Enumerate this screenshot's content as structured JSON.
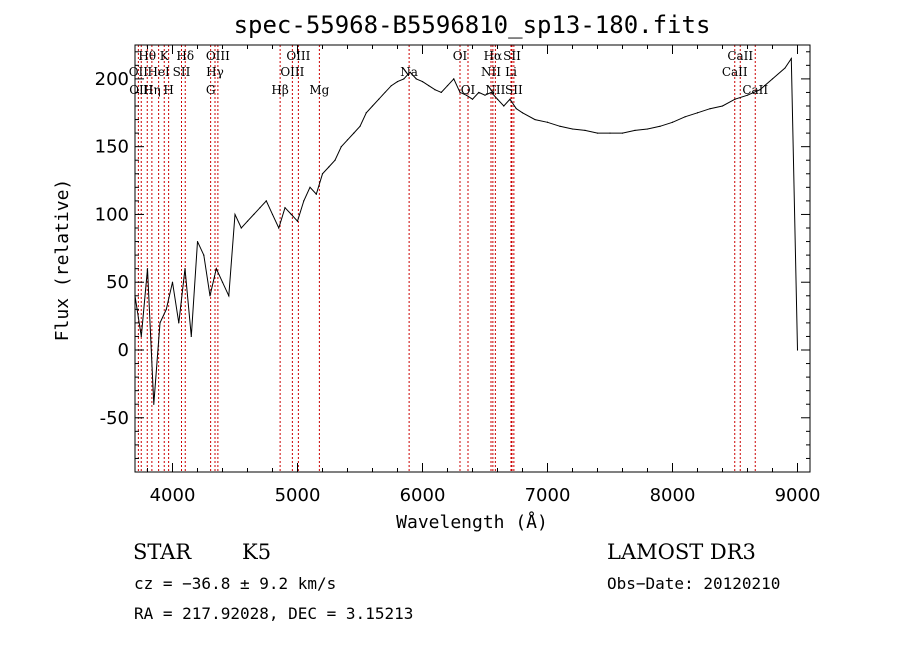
{
  "chart_data": {
    "type": "line",
    "title": "spec-55968-B5596810_sp13-180.fits",
    "xlabel": "Wavelength (Å)",
    "ylabel": "Flux (relative)",
    "xlim": [
      3700,
      9100
    ],
    "ylim": [
      -90,
      225
    ],
    "xticks": [
      4000,
      5000,
      6000,
      7000,
      8000,
      9000
    ],
    "yticks": [
      -50,
      0,
      50,
      100,
      150,
      200
    ],
    "series": [
      {
        "name": "flux",
        "x": [
          3700,
          3750,
          3800,
          3850,
          3900,
          3950,
          4000,
          4050,
          4100,
          4150,
          4200,
          4250,
          4300,
          4350,
          4400,
          4450,
          4500,
          4550,
          4600,
          4650,
          4700,
          4750,
          4800,
          4850,
          4900,
          4950,
          5000,
          5050,
          5100,
          5150,
          5200,
          5250,
          5300,
          5350,
          5400,
          5450,
          5500,
          5550,
          5600,
          5650,
          5700,
          5750,
          5800,
          5850,
          5900,
          5950,
          6000,
          6050,
          6100,
          6150,
          6200,
          6250,
          6300,
          6350,
          6400,
          6450,
          6500,
          6550,
          6600,
          6650,
          6700,
          6750,
          6800,
          6900,
          7000,
          7100,
          7200,
          7300,
          7400,
          7500,
          7600,
          7700,
          7800,
          7900,
          8000,
          8100,
          8200,
          8300,
          8400,
          8500,
          8600,
          8700,
          8800,
          8900,
          8950,
          9000
        ],
        "y": [
          40,
          10,
          60,
          -40,
          20,
          30,
          50,
          20,
          60,
          10,
          80,
          70,
          40,
          60,
          50,
          40,
          100,
          90,
          95,
          100,
          105,
          110,
          100,
          90,
          105,
          100,
          95,
          110,
          120,
          115,
          130,
          135,
          140,
          150,
          155,
          160,
          165,
          175,
          180,
          185,
          190,
          195,
          198,
          200,
          205,
          200,
          198,
          195,
          192,
          190,
          195,
          200,
          190,
          188,
          185,
          190,
          188,
          190,
          185,
          180,
          185,
          178,
          175,
          170,
          168,
          165,
          163,
          162,
          160,
          160,
          160,
          162,
          163,
          165,
          168,
          172,
          175,
          178,
          180,
          185,
          188,
          192,
          200,
          208,
          215,
          0
        ]
      }
    ],
    "line_features": [
      {
        "label": "Hθ",
        "x": 3798,
        "row": 1
      },
      {
        "label": "OII",
        "x": 3727,
        "row": 2
      },
      {
        "label": "OIII",
        "x": 3750,
        "row": 3
      },
      {
        "label": "K",
        "x": 3934,
        "row": 1
      },
      {
        "label": "HeI",
        "x": 3889,
        "row": 2
      },
      {
        "label": "Hη",
        "x": 3835,
        "row": 3
      },
      {
        "label": "Hδ",
        "x": 4102,
        "row": 1
      },
      {
        "label": "SII",
        "x": 4072,
        "row": 2
      },
      {
        "label": "H",
        "x": 3969,
        "row": 3
      },
      {
        "label": "OIII",
        "x": 4363,
        "row": 1
      },
      {
        "label": "Hγ",
        "x": 4340,
        "row": 2
      },
      {
        "label": "G",
        "x": 4305,
        "row": 3
      },
      {
        "label": "OIII",
        "x": 5007,
        "row": 1
      },
      {
        "label": "OIII",
        "x": 4959,
        "row": 2
      },
      {
        "label": "Hβ",
        "x": 4861,
        "row": 3
      },
      {
        "label": "Mg",
        "x": 5175,
        "row": 3
      },
      {
        "label": "Na",
        "x": 5893,
        "row": 2
      },
      {
        "label": "OI",
        "x": 6300,
        "row": 1
      },
      {
        "label": "OI",
        "x": 6364,
        "row": 3
      },
      {
        "label": "Hα",
        "x": 6563,
        "row": 1
      },
      {
        "label": "NII",
        "x": 6548,
        "row": 2
      },
      {
        "label": "NII",
        "x": 6583,
        "row": 3
      },
      {
        "label": "SII",
        "x": 6716,
        "row": 1
      },
      {
        "label": "Li",
        "x": 6708,
        "row": 2
      },
      {
        "label": "SII",
        "x": 6731,
        "row": 3
      },
      {
        "label": "CaII",
        "x": 8542,
        "row": 1
      },
      {
        "label": "CaII",
        "x": 8498,
        "row": 2
      },
      {
        "label": "CaII",
        "x": 8662,
        "row": 3
      }
    ]
  },
  "info": {
    "object_type": "STAR",
    "subclass": "K5",
    "survey": "LAMOST DR3",
    "cz": "cz = −36.8 ± 9.2 km/s",
    "obs_date": "Obs−Date: 20120210",
    "coords": "RA = 217.92028, DEC =    3.15213"
  },
  "colors": {
    "feature_line": "#cc0000",
    "spectrum": "#000000",
    "axes": "#000000"
  }
}
